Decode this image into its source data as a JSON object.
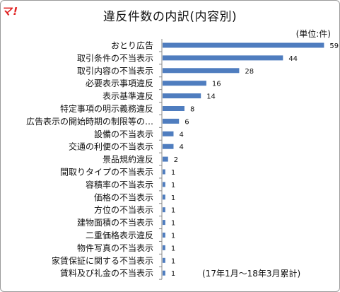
{
  "logo": {
    "text": "マ!",
    "color": "#e02020"
  },
  "title": "違反件数の内訳(内容別)",
  "unit_label": "(単位:件)",
  "note": "(17年1月～18年3月累計)",
  "colors": {
    "bar": "#4f7dbf",
    "axis": "#888888"
  },
  "chart_data": {
    "type": "bar",
    "orientation": "horizontal",
    "categories": [
      "おとり広告",
      "取引条件の不当表示",
      "取引内容の不当表示",
      "必要表示事項違反",
      "表示基準違反",
      "特定事項の明示義務違反",
      "広告表示の開始時期の制限等の…",
      "設備の不当表示",
      "交通の利便の不当表示",
      "景品規約違反",
      "間取りタイプの不当表示",
      "容積率の不当表示",
      "価格の不当表示",
      "方位の不当表示",
      "建物面積の不当表示",
      "二重価格表示違反",
      "物件写真の不当表示",
      "家賃保証に関する不当表示",
      "賃料及び礼金の不当表示"
    ],
    "values": [
      59,
      44,
      28,
      16,
      14,
      8,
      6,
      4,
      4,
      2,
      1,
      1,
      1,
      1,
      1,
      1,
      1,
      1,
      1
    ],
    "title": "違反件数の内訳(内容別)",
    "xlim": [
      0,
      62
    ],
    "grid": false,
    "legend": "none"
  }
}
